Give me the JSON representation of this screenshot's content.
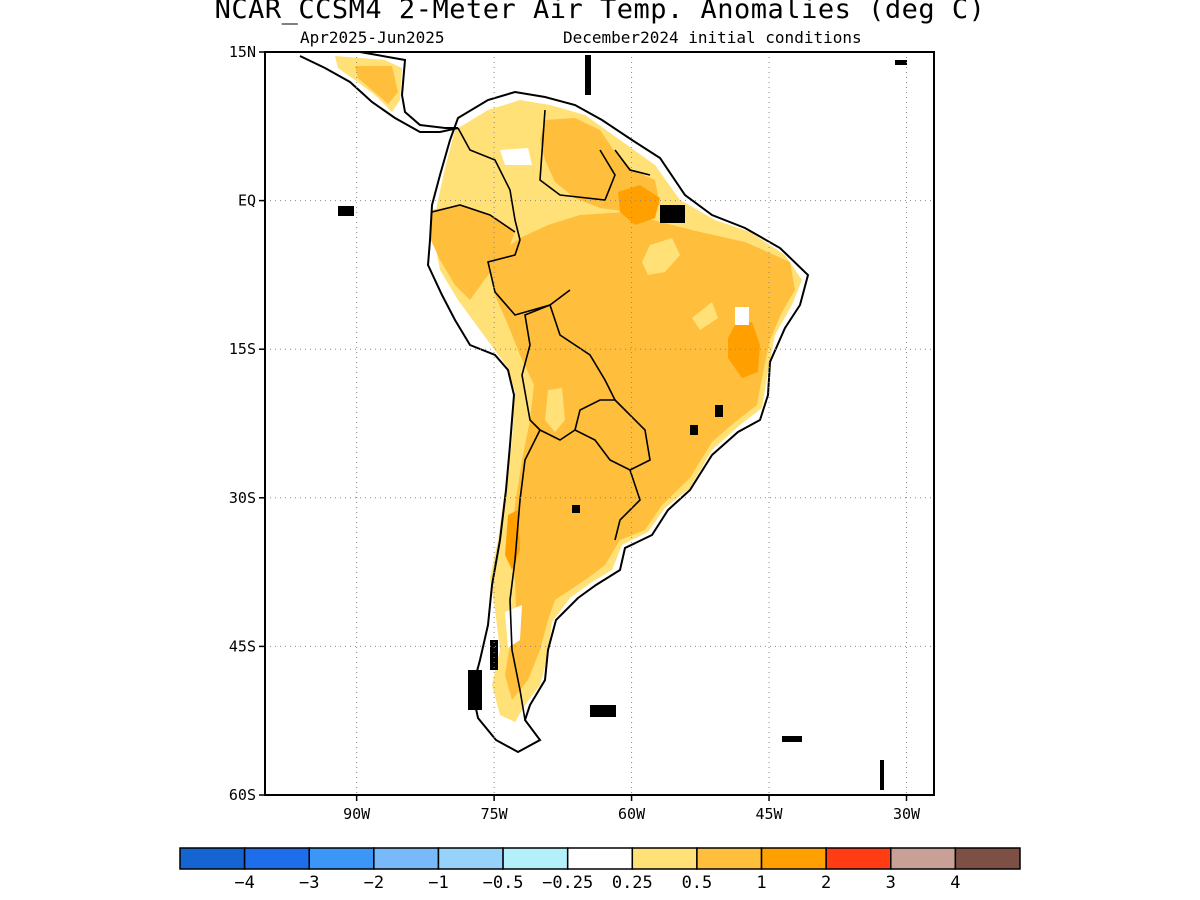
{
  "title": "NCAR_CCSM4 2-Meter Air Temp. Anomalies (deg C)",
  "subtitle_left": "Apr2025-Jun2025",
  "subtitle_right": "December2024 initial conditions",
  "map": {
    "lon_range": [
      -100,
      -27
    ],
    "lat_range": [
      -60,
      15
    ],
    "lat_ticks": [
      {
        "value": 15,
        "label": "15N"
      },
      {
        "value": 0,
        "label": "EQ"
      },
      {
        "value": -15,
        "label": "15S"
      },
      {
        "value": -30,
        "label": "30S"
      },
      {
        "value": -45,
        "label": "45S"
      },
      {
        "value": -60,
        "label": "60S"
      }
    ],
    "lon_ticks": [
      {
        "value": -90,
        "label": "90W"
      },
      {
        "value": -75,
        "label": "75W"
      },
      {
        "value": -60,
        "label": "60W"
      },
      {
        "value": -45,
        "label": "45W"
      },
      {
        "value": -30,
        "label": "30W"
      }
    ],
    "grid": "dotted"
  },
  "legend": {
    "colors": [
      "#1464d2",
      "#1e6eeb",
      "#3c96f5",
      "#78b9fa",
      "#96d2fa",
      "#b4f0fa",
      "#ffffff",
      "#ffe178",
      "#ffbe3c",
      "#ffa000",
      "#ff3c14",
      "#c8a096",
      "#7d5046"
    ],
    "labels": [
      "−4",
      "−3",
      "−2",
      "−1",
      "−0.5",
      "−0.25",
      "0.25",
      "0.5",
      "1",
      "2",
      "3",
      "4"
    ]
  },
  "colors": {
    "light_anomaly": "#ffe178",
    "mid_anomaly": "#ffbe3c",
    "high_anomaly": "#ffa000"
  }
}
